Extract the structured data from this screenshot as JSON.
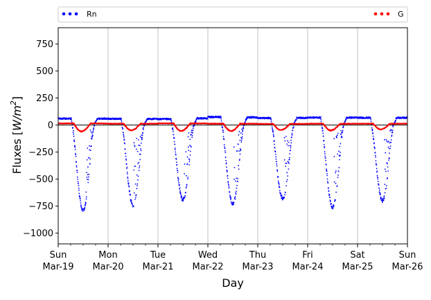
{
  "chart_data": {
    "type": "scatter",
    "title": "",
    "xlabel": "Day",
    "ylabel": "Fluxes [W/m²]",
    "ylabel_parts": {
      "prefix": "Fluxes [",
      "unit_base": "W/m",
      "unit_exp": "2",
      "suffix": "]"
    },
    "ylim": [
      -1100,
      900
    ],
    "yticks": [
      750,
      500,
      250,
      0,
      -250,
      -500,
      -750,
      -1000
    ],
    "xlim": [
      "2017-03-19",
      "2017-03-26"
    ],
    "xticks": [
      {
        "day": "Sun",
        "date": "Mar-19"
      },
      {
        "day": "Mon",
        "date": "Mar-20"
      },
      {
        "day": "Tue",
        "date": "Mar-21"
      },
      {
        "day": "Wed",
        "date": "Mar-22"
      },
      {
        "day": "Thu",
        "date": "Mar-23"
      },
      {
        "day": "Fri",
        "date": "Mar-24"
      },
      {
        "day": "Sat",
        "date": "Mar-25"
      },
      {
        "day": "Sun",
        "date": "Mar-26"
      }
    ],
    "grid": "x",
    "zero_line": true,
    "legend": [
      {
        "name": "Rn",
        "color": "#0000ff",
        "placement": "top-left"
      },
      {
        "name": "G",
        "color": "#ff0000",
        "placement": "top-right"
      }
    ],
    "series": [
      {
        "name": "Rn",
        "color": "#0000ff",
        "style": "dots",
        "days": [
          {
            "date": "Mar-19",
            "night": 60,
            "trough": -790,
            "trough_hour": 12.8
          },
          {
            "date": "Mar-20",
            "night": 58,
            "trough": -740,
            "trough_hour": 11.8
          },
          {
            "date": "Mar-21",
            "night": 55,
            "trough": -690,
            "trough_hour": 12.0
          },
          {
            "date": "Mar-22",
            "night": 75,
            "trough": -730,
            "trough_hour": 12.0
          },
          {
            "date": "Mar-23",
            "night": 65,
            "trough": -680,
            "trough_hour": 12.2
          },
          {
            "date": "Mar-24",
            "night": 70,
            "trough": -760,
            "trough_hour": 12.0
          },
          {
            "date": "Mar-25",
            "night": 68,
            "trough": -700,
            "trough_hour": 12.3
          }
        ]
      },
      {
        "name": "G",
        "color": "#ff0000",
        "style": "line",
        "days": [
          {
            "date": "Mar-19",
            "night": 15,
            "min": -60,
            "min_hour": 11.0
          },
          {
            "date": "Mar-20",
            "night": 12,
            "min": -50,
            "min_hour": 11.0
          },
          {
            "date": "Mar-21",
            "night": 15,
            "min": -55,
            "min_hour": 11.0
          },
          {
            "date": "Mar-22",
            "night": 12,
            "min": -55,
            "min_hour": 11.0
          },
          {
            "date": "Mar-23",
            "night": 10,
            "min": -45,
            "min_hour": 11.0
          },
          {
            "date": "Mar-24",
            "night": 12,
            "min": -50,
            "min_hour": 11.0
          },
          {
            "date": "Mar-25",
            "night": 12,
            "min": -40,
            "min_hour": 11.0
          }
        ]
      }
    ]
  }
}
